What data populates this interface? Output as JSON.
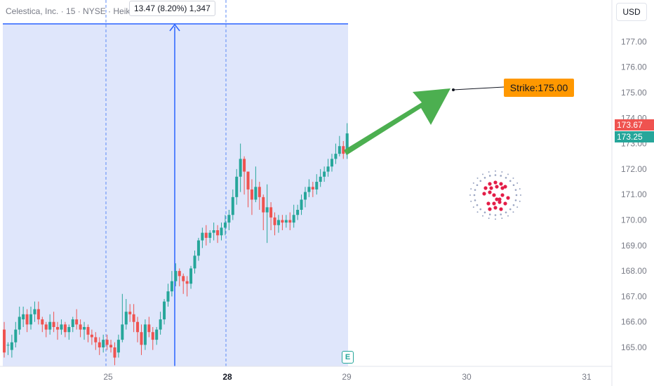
{
  "header": {
    "legend_text": "Celestica, Inc. · 15 · NYSE · Heikin Ashi",
    "currency_button": "USD"
  },
  "measure": {
    "label": "13.47 (8.20%) 1,347"
  },
  "annotation": {
    "strike_label": "Strike:175.00",
    "strike_price": 175.0
  },
  "price_tags": {
    "last": "173.67",
    "prev": "173.25"
  },
  "earnings_badge": "E",
  "colors": {
    "up": "#26a69a",
    "down": "#ef5350",
    "measure_fill": "#dfe6fb",
    "measure_line": "#2962ff",
    "arrow": "#4caf50",
    "strike_bg": "#ff9800",
    "logo_red": "#e31c47",
    "logo_dots": "#9aa5c2"
  },
  "chart_data": {
    "type": "candlestick",
    "symbol": "Celestica, Inc.",
    "interval": "15",
    "exchange": "NYSE",
    "style": "Heikin Ashi",
    "x_tick_labels": [
      "25",
      "28",
      "29",
      "30",
      "31"
    ],
    "y_tick_labels": [
      "165.00",
      "166.00",
      "167.00",
      "168.00",
      "169.00",
      "170.00",
      "171.00",
      "172.00",
      "173.00",
      "174.00",
      "175.00",
      "176.00",
      "177.00"
    ],
    "ylim": [
      164.4,
      177.8
    ],
    "last_price": 173.67,
    "prev_close": 173.25,
    "candles": [
      [
        165.7,
        164.8,
        166.0,
        164.6
      ],
      [
        165.1,
        165.1,
        165.2,
        164.7
      ],
      [
        164.9,
        165.2,
        165.5,
        164.6
      ],
      [
        165.2,
        165.7,
        166.0,
        165.0
      ],
      [
        165.7,
        166.2,
        166.6,
        165.5
      ],
      [
        166.1,
        166.3,
        166.6,
        165.8
      ],
      [
        166.3,
        165.9,
        166.5,
        165.6
      ],
      [
        165.9,
        166.3,
        166.6,
        165.7
      ],
      [
        166.3,
        166.5,
        166.8,
        166.0
      ],
      [
        166.5,
        166.1,
        166.8,
        165.9
      ],
      [
        166.1,
        165.9,
        166.2,
        165.6
      ],
      [
        165.9,
        165.7,
        166.0,
        165.4
      ],
      [
        165.7,
        166.0,
        166.3,
        165.5
      ],
      [
        166.0,
        165.8,
        166.4,
        165.6
      ],
      [
        165.8,
        165.7,
        166.0,
        165.3
      ],
      [
        165.7,
        165.9,
        166.1,
        165.5
      ],
      [
        165.9,
        165.6,
        166.0,
        165.4
      ],
      [
        165.6,
        165.8,
        165.9,
        165.3
      ],
      [
        165.8,
        166.1,
        166.2,
        165.6
      ],
      [
        166.1,
        165.9,
        166.5,
        165.7
      ],
      [
        165.9,
        165.7,
        166.1,
        165.4
      ],
      [
        165.7,
        165.8,
        166.0,
        165.3
      ],
      [
        165.8,
        165.5,
        165.9,
        165.2
      ],
      [
        165.5,
        165.4,
        165.7,
        165.1
      ],
      [
        165.4,
        165.2,
        165.6,
        164.9
      ],
      [
        165.2,
        165.0,
        165.4,
        164.7
      ],
      [
        165.0,
        165.3,
        165.5,
        164.8
      ],
      [
        165.3,
        165.1,
        165.5,
        164.9
      ],
      [
        165.1,
        165.0,
        165.3,
        164.8
      ],
      [
        165.0,
        164.6,
        165.2,
        164.3
      ],
      [
        164.8,
        165.3,
        165.5,
        164.6
      ],
      [
        165.3,
        165.9,
        167.1,
        165.2
      ],
      [
        165.9,
        166.4,
        166.9,
        165.7
      ],
      [
        166.4,
        166.3,
        166.7,
        166.0
      ],
      [
        166.3,
        166.0,
        166.7,
        165.6
      ],
      [
        166.0,
        165.6,
        166.2,
        165.2
      ],
      [
        165.6,
        165.1,
        165.9,
        164.7
      ],
      [
        165.1,
        165.9,
        166.1,
        164.9
      ],
      [
        165.9,
        165.6,
        166.2,
        165.4
      ],
      [
        165.6,
        165.3,
        165.8,
        164.9
      ],
      [
        165.3,
        165.7,
        165.8,
        165.1
      ],
      [
        165.7,
        166.1,
        166.4,
        165.5
      ],
      [
        166.1,
        166.8,
        166.9,
        165.9
      ],
      [
        166.8,
        167.2,
        167.5,
        166.6
      ],
      [
        167.2,
        167.6,
        168.0,
        167.0
      ],
      [
        167.6,
        168.0,
        168.3,
        167.4
      ],
      [
        168.0,
        167.8,
        168.1,
        167.4
      ],
      [
        167.8,
        167.6,
        167.9,
        167.1
      ],
      [
        167.6,
        167.5,
        167.8,
        167.0
      ],
      [
        167.5,
        168.1,
        168.2,
        167.3
      ],
      [
        168.1,
        168.6,
        168.8,
        167.9
      ],
      [
        168.6,
        169.2,
        169.3,
        168.4
      ],
      [
        169.2,
        169.5,
        169.7,
        168.9
      ],
      [
        169.5,
        169.3,
        169.8,
        169.0
      ],
      [
        169.3,
        169.5,
        169.6,
        169.1
      ],
      [
        169.5,
        169.6,
        169.9,
        169.2
      ],
      [
        169.6,
        169.4,
        169.8,
        169.1
      ],
      [
        169.4,
        169.7,
        169.9,
        169.2
      ],
      [
        169.7,
        169.9,
        170.2,
        169.4
      ],
      [
        169.9,
        170.2,
        170.4,
        169.6
      ],
      [
        170.2,
        170.9,
        171.2,
        170.0
      ],
      [
        170.9,
        171.7,
        172.0,
        170.6
      ],
      [
        171.7,
        172.4,
        173.0,
        171.1
      ],
      [
        172.4,
        171.9,
        172.5,
        171.0
      ],
      [
        171.9,
        171.2,
        171.9,
        170.5
      ],
      [
        171.2,
        170.8,
        171.6,
        170.2
      ],
      [
        170.8,
        171.3,
        172.1,
        170.7
      ],
      [
        171.3,
        170.9,
        171.5,
        170.4
      ],
      [
        170.9,
        170.3,
        171.0,
        169.6
      ],
      [
        170.3,
        170.5,
        171.4,
        169.1
      ],
      [
        170.5,
        170.1,
        170.7,
        169.6
      ],
      [
        170.1,
        169.8,
        170.3,
        169.4
      ],
      [
        169.8,
        170.0,
        170.2,
        169.5
      ],
      [
        170.0,
        169.9,
        170.2,
        169.6
      ],
      [
        169.9,
        170.0,
        170.2,
        169.7
      ],
      [
        170.0,
        169.9,
        170.3,
        169.6
      ],
      [
        169.9,
        170.2,
        170.6,
        169.7
      ],
      [
        170.2,
        170.4,
        170.6,
        170.0
      ],
      [
        170.4,
        170.8,
        171.0,
        170.2
      ],
      [
        170.8,
        171.1,
        171.3,
        170.5
      ],
      [
        171.1,
        171.3,
        171.6,
        170.9
      ],
      [
        171.3,
        171.2,
        171.5,
        170.9
      ],
      [
        171.2,
        171.5,
        171.8,
        171.0
      ],
      [
        171.5,
        171.7,
        172.0,
        171.3
      ],
      [
        171.7,
        171.9,
        172.1,
        171.5
      ],
      [
        171.9,
        172.1,
        172.4,
        171.7
      ],
      [
        172.1,
        172.4,
        172.6,
        171.9
      ],
      [
        172.4,
        172.6,
        173.0,
        172.2
      ],
      [
        172.6,
        172.9,
        173.3,
        172.5
      ],
      [
        172.9,
        172.6,
        173.1,
        172.4
      ],
      [
        172.6,
        173.4,
        173.8,
        172.4
      ]
    ],
    "measure": {
      "from_index": 30,
      "to_index": 64,
      "label": "13.47 (8.20%) 1,347"
    },
    "annotations": [
      {
        "type": "arrow",
        "color": "green"
      },
      {
        "type": "trend-line",
        "to_price": 175.0,
        "label": "Strike:175.00"
      },
      {
        "type": "logo",
        "name": "celestica-logo"
      }
    ]
  }
}
